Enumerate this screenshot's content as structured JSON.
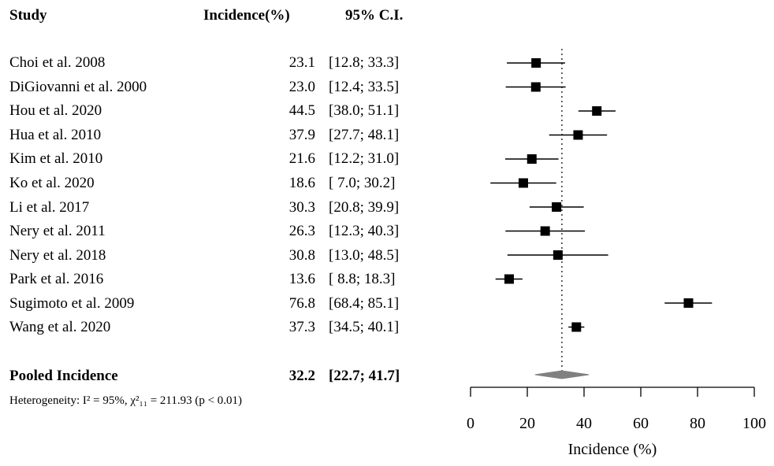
{
  "headers": {
    "study": "Study",
    "incidence": "Incidence(%)",
    "ci": "95% C.I."
  },
  "studies": [
    {
      "name": "Choi et al. 2008",
      "incidence": "23.1",
      "ci": "[12.8; 33.3]"
    },
    {
      "name": "DiGiovanni et al. 2000",
      "incidence": "23.0",
      "ci": "[12.4; 33.5]"
    },
    {
      "name": "Hou et al. 2020",
      "incidence": "44.5",
      "ci": "[38.0; 51.1]"
    },
    {
      "name": "Hua et al. 2010",
      "incidence": "37.9",
      "ci": "[27.7; 48.1]"
    },
    {
      "name": "Kim et al. 2010",
      "incidence": "21.6",
      "ci": "[12.2; 31.0]"
    },
    {
      "name": "Ko et al. 2020",
      "incidence": "18.6",
      "ci": "[ 7.0; 30.2]"
    },
    {
      "name": "Li et al. 2017",
      "incidence": "30.3",
      "ci": "[20.8; 39.9]"
    },
    {
      "name": "Nery et al. 2011",
      "incidence": "26.3",
      "ci": "[12.3; 40.3]"
    },
    {
      "name": "Nery et al. 2018",
      "incidence": "30.8",
      "ci": "[13.0; 48.5]"
    },
    {
      "name": "Park et al. 2016",
      "incidence": "13.6",
      "ci": "[ 8.8; 18.3]"
    },
    {
      "name": "Sugimoto et al. 2009",
      "incidence": "76.8",
      "ci": "[68.4; 85.1]"
    },
    {
      "name": "Wang et al. 2020",
      "incidence": "37.3",
      "ci": "[34.5; 40.1]"
    }
  ],
  "pooled": {
    "label": "Pooled Incidence",
    "incidence": "32.2",
    "ci": "[22.7; 41.7]"
  },
  "heterogeneity": "Heterogeneity: I² = 95%, χ²₁₁ = 211.93 (p < 0.01)",
  "chart_data": {
    "type": "forest",
    "xlabel": "Incidence (%)",
    "xlim": [
      0,
      100
    ],
    "ticks": [
      0,
      20,
      40,
      60,
      80,
      100
    ],
    "reference_line": 32.2,
    "marker_color": "#000000",
    "diamond_color": "#808080",
    "points": [
      {
        "label": "Choi et al. 2008",
        "est": 23.1,
        "lo": 12.8,
        "hi": 33.3
      },
      {
        "label": "DiGiovanni et al. 2000",
        "est": 23.0,
        "lo": 12.4,
        "hi": 33.5
      },
      {
        "label": "Hou et al. 2020",
        "est": 44.5,
        "lo": 38.0,
        "hi": 51.1
      },
      {
        "label": "Hua et al. 2010",
        "est": 37.9,
        "lo": 27.7,
        "hi": 48.1
      },
      {
        "label": "Kim et al. 2010",
        "est": 21.6,
        "lo": 12.2,
        "hi": 31.0
      },
      {
        "label": "Ko et al. 2020",
        "est": 18.6,
        "lo": 7.0,
        "hi": 30.2
      },
      {
        "label": "Li et al. 2017",
        "est": 30.3,
        "lo": 20.8,
        "hi": 39.9
      },
      {
        "label": "Nery et al. 2011",
        "est": 26.3,
        "lo": 12.3,
        "hi": 40.3
      },
      {
        "label": "Nery et al. 2018",
        "est": 30.8,
        "lo": 13.0,
        "hi": 48.5
      },
      {
        "label": "Park et al. 2016",
        "est": 13.6,
        "lo": 8.8,
        "hi": 18.3
      },
      {
        "label": "Sugimoto et al. 2009",
        "est": 76.8,
        "lo": 68.4,
        "hi": 85.1
      },
      {
        "label": "Wang et al. 2020",
        "est": 37.3,
        "lo": 34.5,
        "hi": 40.1
      }
    ],
    "pooled": {
      "est": 32.2,
      "lo": 22.7,
      "hi": 41.7
    }
  }
}
